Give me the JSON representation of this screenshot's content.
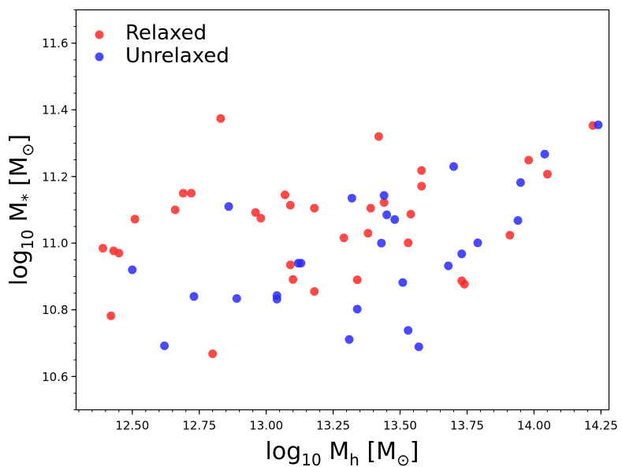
{
  "chart_data": {
    "type": "scatter",
    "title": "",
    "xlabel": {
      "base": "log",
      "base_sub": "10",
      "var": " M",
      "var_sub": "h",
      "unit": " [M",
      "unit_sub": "⊙",
      "close": "]"
    },
    "ylabel": {
      "base": "log",
      "base_sub": "10",
      "var": " M",
      "var_sub": "*",
      "unit": " [M",
      "unit_sub": "⊙",
      "close": "]"
    },
    "xlim": [
      12.29,
      14.28
    ],
    "ylim": [
      10.5,
      11.7
    ],
    "xticks": [
      12.5,
      12.75,
      13.0,
      13.25,
      13.5,
      13.75,
      14.0,
      14.25
    ],
    "xtick_labels": [
      "12.50",
      "12.75",
      "13.00",
      "13.25",
      "13.50",
      "13.75",
      "14.00",
      "14.25"
    ],
    "yticks": [
      10.6,
      10.8,
      11.0,
      11.2,
      11.4,
      11.6
    ],
    "ytick_labels": [
      "10.6",
      "10.8",
      "11.0",
      "11.2",
      "11.4",
      "11.6"
    ],
    "grid": false,
    "legend_position": "top-left",
    "series": [
      {
        "name": "Relaxed",
        "color": "#ff2a2a",
        "points": [
          [
            12.39,
            10.985
          ],
          [
            12.42,
            10.782
          ],
          [
            12.43,
            10.977
          ],
          [
            12.45,
            10.97
          ],
          [
            12.51,
            11.072
          ],
          [
            12.66,
            11.1
          ],
          [
            12.69,
            11.15
          ],
          [
            12.72,
            11.15
          ],
          [
            12.8,
            10.668
          ],
          [
            12.83,
            11.374
          ],
          [
            12.96,
            11.092
          ],
          [
            12.98,
            11.075
          ],
          [
            13.07,
            11.145
          ],
          [
            13.09,
            11.114
          ],
          [
            13.09,
            10.935
          ],
          [
            13.1,
            10.891
          ],
          [
            13.18,
            11.105
          ],
          [
            13.18,
            10.855
          ],
          [
            13.29,
            11.016
          ],
          [
            13.34,
            10.89
          ],
          [
            13.38,
            11.03
          ],
          [
            13.39,
            11.105
          ],
          [
            13.42,
            11.32
          ],
          [
            13.44,
            11.122
          ],
          [
            13.53,
            11.001
          ],
          [
            13.54,
            11.087
          ],
          [
            13.58,
            11.218
          ],
          [
            13.58,
            11.171
          ],
          [
            13.73,
            10.887
          ],
          [
            13.74,
            10.877
          ],
          [
            13.91,
            11.024
          ],
          [
            13.98,
            11.249
          ],
          [
            14.05,
            11.207
          ],
          [
            14.22,
            11.353
          ]
        ]
      },
      {
        "name": "Unrelaxed",
        "color": "#2a2aff",
        "points": [
          [
            12.5,
            10.92
          ],
          [
            12.62,
            10.692
          ],
          [
            12.73,
            10.84
          ],
          [
            12.86,
            11.11
          ],
          [
            12.89,
            10.834
          ],
          [
            13.04,
            10.832
          ],
          [
            13.04,
            10.843
          ],
          [
            13.12,
            10.94
          ],
          [
            13.13,
            10.94
          ],
          [
            13.31,
            10.711
          ],
          [
            13.32,
            11.135
          ],
          [
            13.34,
            10.802
          ],
          [
            13.43,
            11.0
          ],
          [
            13.44,
            11.143
          ],
          [
            13.45,
            11.085
          ],
          [
            13.48,
            11.071
          ],
          [
            13.51,
            10.882
          ],
          [
            13.53,
            10.738
          ],
          [
            13.57,
            10.689
          ],
          [
            13.68,
            10.932
          ],
          [
            13.7,
            11.23
          ],
          [
            13.73,
            10.968
          ],
          [
            13.79,
            11.001
          ],
          [
            13.94,
            11.068
          ],
          [
            13.95,
            11.182
          ],
          [
            14.04,
            11.267
          ],
          [
            14.24,
            11.355
          ]
        ]
      }
    ]
  }
}
